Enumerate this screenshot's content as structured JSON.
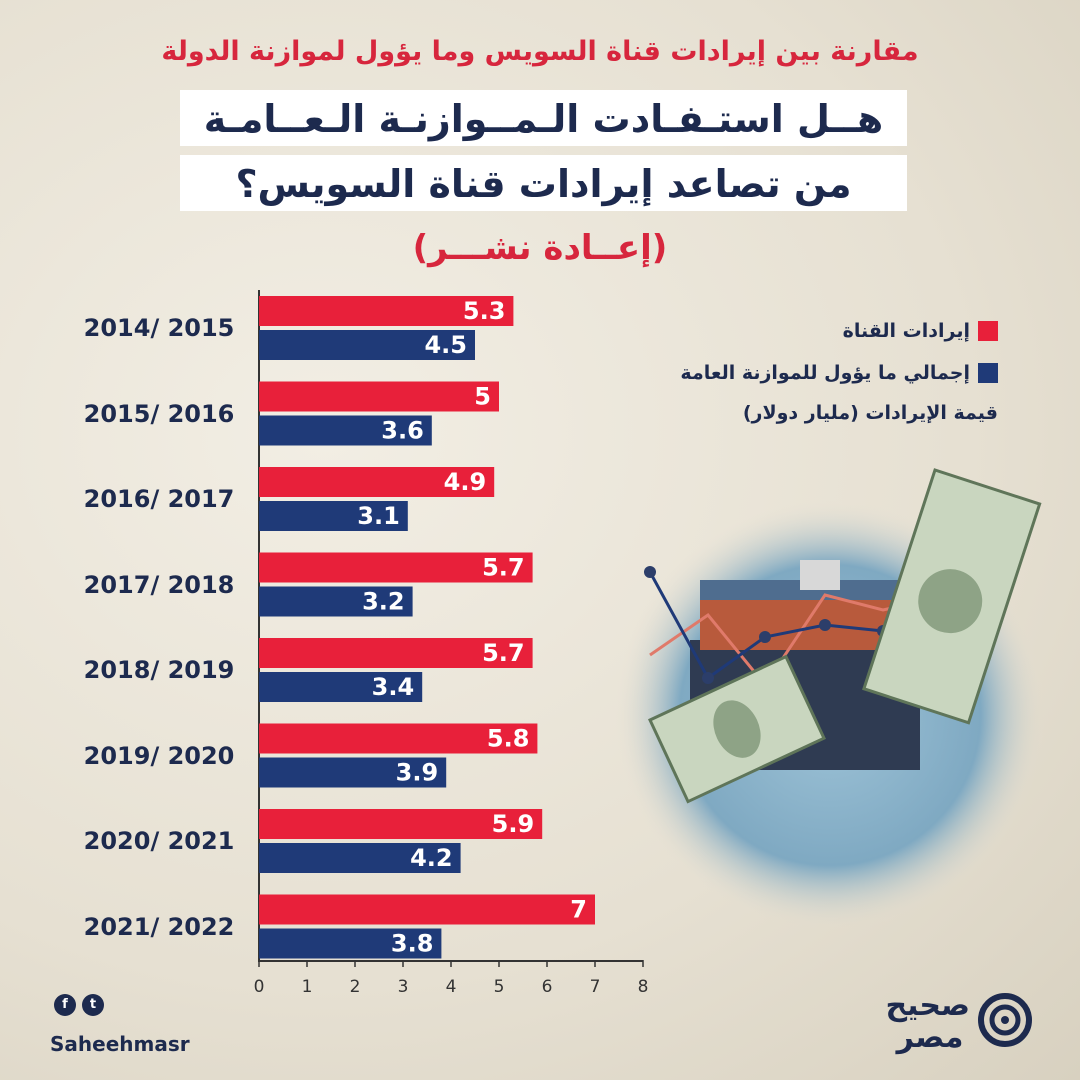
{
  "header": {
    "subtitle": "مقارنة بين إيرادات قناة السويس وما يؤول لموازنة الدولة",
    "title_line1": "هــل استـفـادت الـمــوازنـة الـعــامـة",
    "title_line2": "من تصاعد إيرادات قناة السويس؟",
    "republish": "(إعــادة نشـــر)"
  },
  "legend": {
    "channel_label": "إيرادات القناة",
    "budget_label": "إجمالي ما يؤول للموازنة العامة",
    "unit_label": "قيمة الإيرادات (مليار دولار)"
  },
  "colors": {
    "channel": "#e8203a",
    "budget": "#1f3a78",
    "text": "#1d2a4e"
  },
  "chart_data": {
    "type": "bar",
    "orientation": "horizontal",
    "categories": [
      "2015 /2014",
      "2016 /2015",
      "2017 /2016",
      "2018 /2017",
      "2019 /2018",
      "2020 /2019",
      "2021 /2020",
      "2022 /2021"
    ],
    "series": [
      {
        "name": "إيرادات القناة",
        "values": [
          5.3,
          5,
          4.9,
          5.7,
          5.7,
          5.8,
          5.9,
          7
        ]
      },
      {
        "name": "إجمالي ما يؤول للموازنة العامة",
        "values": [
          4.5,
          3.6,
          3.1,
          3.2,
          3.4,
          3.9,
          4.2,
          3.8
        ]
      }
    ],
    "value_labels": [
      [
        "5.3",
        "5",
        "4.9",
        "5.7",
        "5.7",
        "5.8",
        "5.9",
        "7"
      ],
      [
        "4.5",
        "3.6",
        "3.1",
        "3.2",
        "3.4",
        "3.9",
        "4.2",
        "3.8"
      ]
    ],
    "xlim": [
      0,
      8
    ],
    "xticks": [
      "0",
      "1",
      "2",
      "3",
      "4",
      "5",
      "6",
      "7",
      "8"
    ],
    "grid": false,
    "legend_position": "top-right"
  },
  "footer": {
    "handle": "Saheehmasr",
    "social": [
      "f",
      "t"
    ],
    "logo_text": "صحيح مصر"
  }
}
